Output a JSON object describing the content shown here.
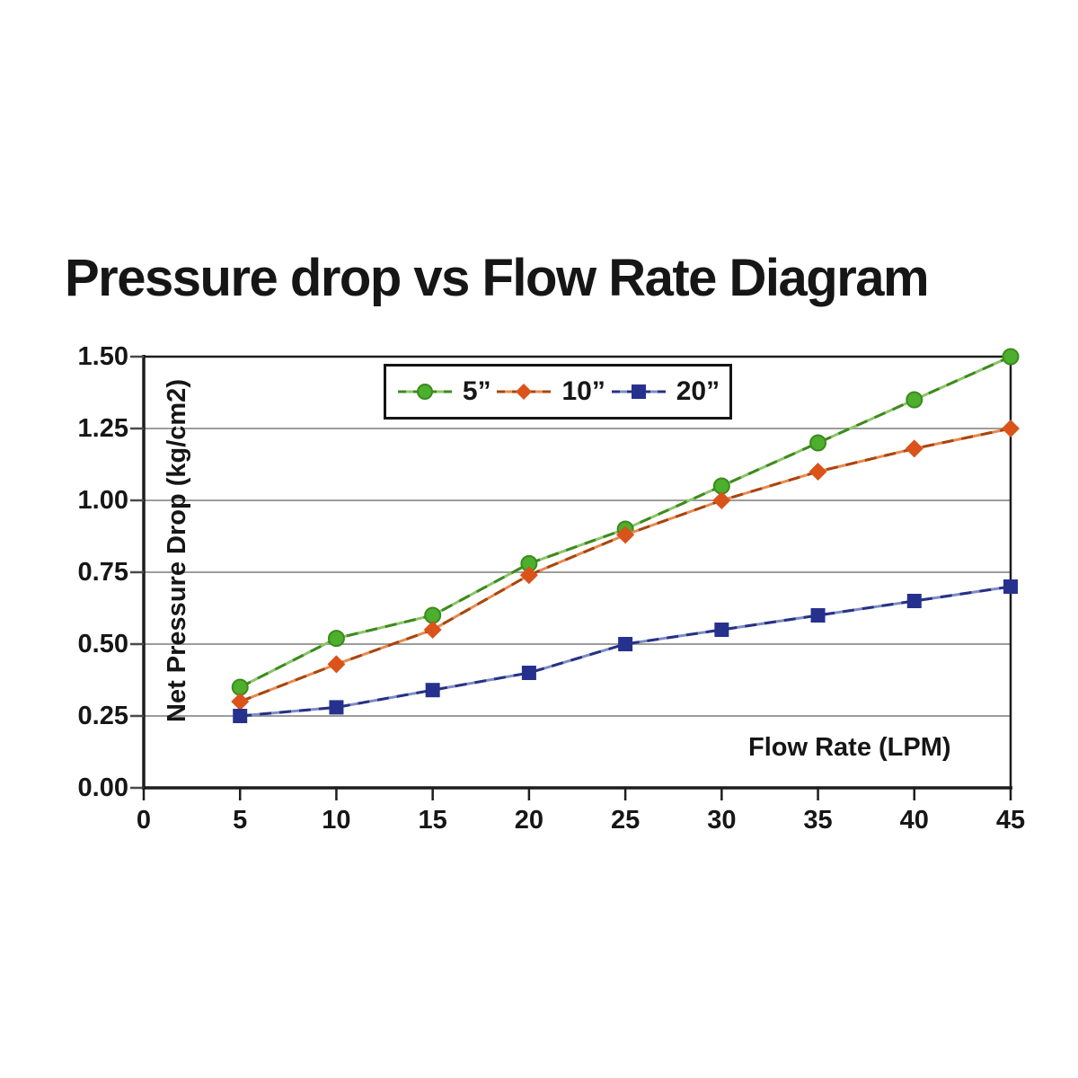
{
  "title": "Pressure drop vs Flow Rate Diagram",
  "chart_data": {
    "type": "line",
    "title": "Pressure drop vs Flow Rate Diagram",
    "xlabel": "Flow Rate (LPM)",
    "ylabel": "Net Pressure Drop (kg/cm2)",
    "xlim": [
      0,
      45
    ],
    "ylim": [
      0.0,
      1.5
    ],
    "x_ticks": [
      0,
      5,
      10,
      15,
      20,
      25,
      30,
      35,
      40,
      45
    ],
    "y_ticks": [
      "0.00",
      "0.25",
      "0.50",
      "0.75",
      "1.00",
      "1.25",
      "1.50"
    ],
    "grid": "horizontal",
    "grid_color": "#9c9c9c",
    "axis_color": "#1d1d1d",
    "text_color": "#161616",
    "legend_position": "top-center-inside",
    "x": [
      5,
      10,
      15,
      20,
      25,
      30,
      35,
      40,
      45
    ],
    "series": [
      {
        "name": "5”",
        "values": [
          0.35,
          0.52,
          0.6,
          0.78,
          0.9,
          1.05,
          1.2,
          1.35,
          1.5
        ],
        "marker": "circle",
        "line_color": "#8cc46a",
        "dash_color": "#3d8a1e",
        "marker_color": "#4caf2e"
      },
      {
        "name": "10”",
        "values": [
          0.3,
          0.43,
          0.55,
          0.74,
          0.88,
          1.0,
          1.1,
          1.18,
          1.25
        ],
        "marker": "diamond",
        "line_color": "#e8894e",
        "dash_color": "#a8450e",
        "marker_color": "#d9531a"
      },
      {
        "name": "20”",
        "values": [
          0.25,
          0.28,
          0.34,
          0.4,
          0.5,
          0.55,
          0.6,
          0.65,
          0.7
        ],
        "marker": "square",
        "line_color": "#8property",
        "dash_color": "#273185",
        "marker_color": "#26318e"
      }
    ]
  }
}
